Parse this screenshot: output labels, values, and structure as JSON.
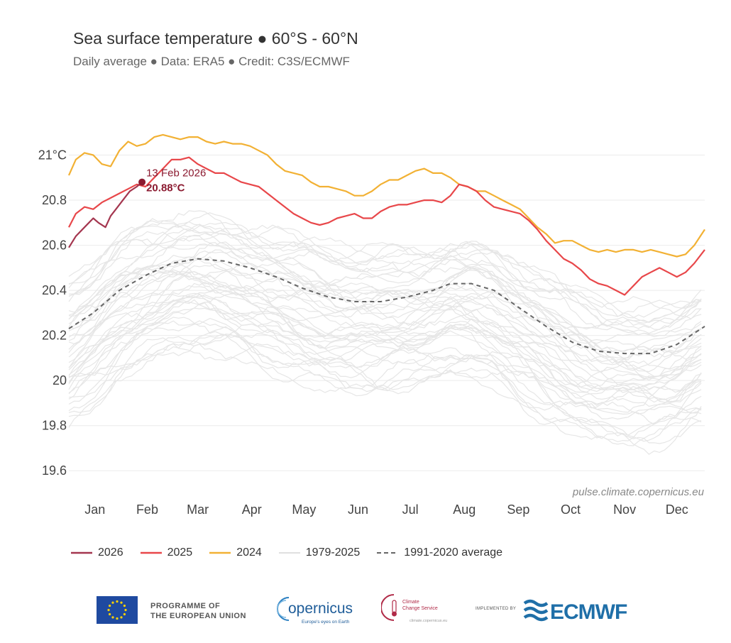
{
  "title": "Sea surface temperature ● 60°S - 60°N",
  "subtitle": "Daily average ● Data: ERA5 ● Credit: C3S/ECMWF",
  "watermark": "pulse.climate.copernicus.eu",
  "annotation": {
    "date": "13 Feb 2026",
    "value": "20.88°C",
    "x": 43,
    "y": 20.88
  },
  "colors": {
    "y2026": "#a4364f",
    "y2025": "#e8474a",
    "y2024": "#f2b134",
    "historical": "#e6e6e6",
    "average": "#666666",
    "grid": "#ebebeb",
    "annotation": "#8b1a30"
  },
  "legend": {
    "y2026": "2026",
    "y2025": "2025",
    "y2024": "2024",
    "historical": "1979-2025",
    "average": "1991-2020 average"
  },
  "footer": {
    "eu_line1": "PROGRAMME OF",
    "eu_line2": "THE EUROPEAN UNION",
    "copernicus_name": "opernicus",
    "copernicus_tagline": "Europe's eyes on Earth",
    "c3s_line1": "Climate",
    "c3s_line2": "Change Service",
    "c3s_url": "climate.copernicus.eu",
    "implemented_by": "IMPLEMENTED BY",
    "ecmwf": "ECMWF"
  },
  "chart_data": {
    "type": "line",
    "x_axis": "day of year",
    "xlim": [
      1,
      366
    ],
    "ylim": [
      19.5,
      21.2
    ],
    "yticks": [
      19.6,
      19.8,
      20,
      20.2,
      20.4,
      20.6,
      20.8,
      21
    ],
    "ytick_labels": [
      "19.6",
      "19.8",
      "20",
      "20.2",
      "20.4",
      "20.6",
      "20.8",
      "21°C"
    ],
    "month_labels": [
      "Jan",
      "Feb",
      "Mar",
      "Apr",
      "May",
      "Jun",
      "Jul",
      "Aug",
      "Sep",
      "Oct",
      "Nov",
      "Dec"
    ],
    "month_positions": [
      16,
      46,
      75,
      106,
      136,
      167,
      197,
      228,
      259,
      289,
      320,
      350
    ],
    "grid": "horizontal",
    "legend_position": "bottom",
    "series": [
      {
        "name": "2026",
        "key": "y2026",
        "x": [
          1,
          5,
          10,
          15,
          18,
          22,
          25,
          28,
          32,
          36,
          40,
          43
        ],
        "y": [
          20.59,
          20.64,
          20.68,
          20.72,
          20.7,
          20.68,
          20.73,
          20.76,
          20.8,
          20.84,
          20.86,
          20.88
        ]
      },
      {
        "name": "2025",
        "key": "y2025",
        "x": [
          1,
          5,
          10,
          15,
          20,
          25,
          30,
          35,
          40,
          45,
          50,
          55,
          60,
          65,
          70,
          75,
          80,
          85,
          90,
          95,
          100,
          105,
          110,
          115,
          120,
          125,
          130,
          135,
          140,
          145,
          150,
          155,
          160,
          165,
          170,
          175,
          180,
          185,
          190,
          195,
          200,
          205,
          210,
          215,
          220,
          225,
          230,
          235,
          240,
          245,
          250,
          255,
          260,
          265,
          270,
          275,
          280,
          285,
          290,
          295,
          300,
          305,
          310,
          315,
          320,
          325,
          330,
          335,
          340,
          345,
          350,
          355,
          360,
          366
        ],
        "y": [
          20.68,
          20.74,
          20.77,
          20.76,
          20.79,
          20.81,
          20.83,
          20.85,
          20.87,
          20.86,
          20.9,
          20.94,
          20.98,
          20.98,
          20.99,
          20.96,
          20.94,
          20.92,
          20.92,
          20.9,
          20.88,
          20.87,
          20.86,
          20.83,
          20.8,
          20.77,
          20.74,
          20.72,
          20.7,
          20.69,
          20.7,
          20.72,
          20.73,
          20.74,
          20.72,
          20.72,
          20.75,
          20.77,
          20.78,
          20.78,
          20.79,
          20.8,
          20.8,
          20.79,
          20.82,
          20.87,
          20.86,
          20.84,
          20.8,
          20.77,
          20.76,
          20.75,
          20.74,
          20.71,
          20.67,
          20.62,
          20.58,
          20.54,
          20.52,
          20.49,
          20.45,
          20.43,
          20.42,
          20.4,
          20.38,
          20.42,
          20.46,
          20.48,
          20.5,
          20.48,
          20.46,
          20.48,
          20.52,
          20.58
        ]
      },
      {
        "name": "2024",
        "key": "y2024",
        "x": [
          1,
          5,
          10,
          15,
          20,
          25,
          30,
          35,
          40,
          45,
          50,
          55,
          60,
          65,
          70,
          75,
          80,
          85,
          90,
          95,
          100,
          105,
          110,
          115,
          120,
          125,
          130,
          135,
          140,
          145,
          150,
          155,
          160,
          165,
          170,
          175,
          180,
          185,
          190,
          195,
          200,
          205,
          210,
          215,
          220,
          225,
          230,
          235,
          240,
          245,
          250,
          255,
          260,
          265,
          270,
          275,
          280,
          285,
          290,
          295,
          300,
          305,
          310,
          315,
          320,
          325,
          330,
          335,
          340,
          345,
          350,
          355,
          360,
          366
        ],
        "y": [
          20.91,
          20.98,
          21.01,
          21.0,
          20.96,
          20.95,
          21.02,
          21.06,
          21.04,
          21.05,
          21.08,
          21.09,
          21.08,
          21.07,
          21.08,
          21.08,
          21.06,
          21.05,
          21.06,
          21.05,
          21.05,
          21.04,
          21.02,
          21.0,
          20.96,
          20.93,
          20.92,
          20.91,
          20.88,
          20.86,
          20.86,
          20.85,
          20.84,
          20.82,
          20.82,
          20.84,
          20.87,
          20.89,
          20.89,
          20.91,
          20.93,
          20.94,
          20.92,
          20.92,
          20.9,
          20.87,
          20.86,
          20.84,
          20.84,
          20.82,
          20.8,
          20.78,
          20.76,
          20.72,
          20.68,
          20.65,
          20.61,
          20.62,
          20.62,
          20.6,
          20.58,
          20.57,
          20.58,
          20.57,
          20.58,
          20.58,
          20.57,
          20.58,
          20.57,
          20.56,
          20.55,
          20.56,
          20.6,
          20.67
        ]
      },
      {
        "name": "1991-2020 average",
        "key": "average",
        "x": [
          1,
          15,
          30,
          46,
          60,
          75,
          90,
          105,
          120,
          135,
          150,
          165,
          180,
          195,
          210,
          220,
          232,
          245,
          260,
          275,
          290,
          305,
          320,
          335,
          350,
          366
        ],
        "y": [
          20.23,
          20.3,
          20.4,
          20.47,
          20.52,
          20.54,
          20.53,
          20.5,
          20.46,
          20.41,
          20.37,
          20.35,
          20.35,
          20.37,
          20.4,
          20.43,
          20.43,
          20.4,
          20.32,
          20.24,
          20.17,
          20.13,
          20.12,
          20.12,
          20.16,
          20.24
        ]
      }
    ]
  }
}
